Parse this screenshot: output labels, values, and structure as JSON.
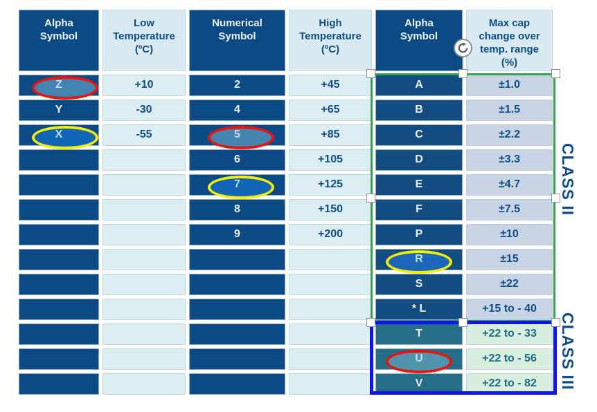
{
  "table": {
    "columns": [
      {
        "key": "alpha1",
        "header": "Alpha\nSymbol",
        "values": [
          "Z",
          "Y",
          "X",
          "",
          "",
          "",
          "",
          "",
          "",
          "",
          "",
          "",
          ""
        ]
      },
      {
        "key": "low_temp",
        "header": "Low\nTemperature\n(ºC)",
        "values": [
          "+10",
          "-30",
          "-55",
          "",
          "",
          "",
          "",
          "",
          "",
          "",
          "",
          "",
          ""
        ]
      },
      {
        "key": "numerical",
        "header": "Numerical\nSymbol",
        "values": [
          "2",
          "4",
          "5",
          "6",
          "7",
          "8",
          "9",
          "",
          "",
          "",
          "",
          "",
          ""
        ]
      },
      {
        "key": "high_temp",
        "header": "High\nTemperature\n(ºC)",
        "values": [
          "+45",
          "+65",
          "+85",
          "+105",
          "+125",
          "+150",
          "+200",
          "",
          "",
          "",
          "",
          "",
          ""
        ]
      },
      {
        "key": "alpha2",
        "header": "Alpha\nSymbol",
        "values": [
          "A",
          "B",
          "C",
          "D",
          "E",
          "F",
          "P",
          "R",
          "S",
          "* L",
          "T",
          "U",
          "V"
        ]
      },
      {
        "key": "max_cap",
        "header": "Max cap\nchange over\ntemp. range\n(%)",
        "values": [
          "±1.0",
          "±1.5",
          "±2.2",
          "±3.3",
          "±4.7",
          "±7.5",
          "±10",
          "±15",
          "±22",
          "+15 to - 40",
          "+22 to - 33",
          "+22 to - 56",
          "+22 to - 82"
        ]
      }
    ]
  },
  "annotations": {
    "class2": {
      "label": "CLASS II",
      "border_color": "#35a24e"
    },
    "class3": {
      "label": "CLASS III",
      "border_color": "#0d18e8"
    },
    "ellipses": [
      {
        "target": "Z",
        "col": 0,
        "row": 0,
        "stroke": "#e8140e",
        "fill": "#4583b1"
      },
      {
        "target": "X",
        "col": 0,
        "row": 2,
        "stroke": "#f2ee0b",
        "fill": "#1166b5"
      },
      {
        "target": "5",
        "col": 2,
        "row": 2,
        "stroke": "#e8140e",
        "fill": "#4583b1"
      },
      {
        "target": "7",
        "col": 2,
        "row": 4,
        "stroke": "#f2ee0b",
        "fill": "#1166b5"
      },
      {
        "target": "R",
        "col": 4,
        "row": 7,
        "stroke": "#f2ee0b",
        "fill": "#1b66bb"
      },
      {
        "target": "U",
        "col": 4,
        "row": 11,
        "stroke": "#e8140e",
        "fill": "#4f93ad"
      }
    ]
  },
  "colors": {
    "dark_cell": "#0c4a86",
    "light_cell": "#ddeef3",
    "header_light": "#d9eaf2",
    "selected_dark_cell": "#134c80",
    "selected_light_cell": "#c8d3e3",
    "teal_cell": "#256e88",
    "mint_cell": "#d8eede",
    "navy_text": "#0d4d8c",
    "teal_text": "#1b6b85",
    "white_text": "#eef4fa"
  }
}
